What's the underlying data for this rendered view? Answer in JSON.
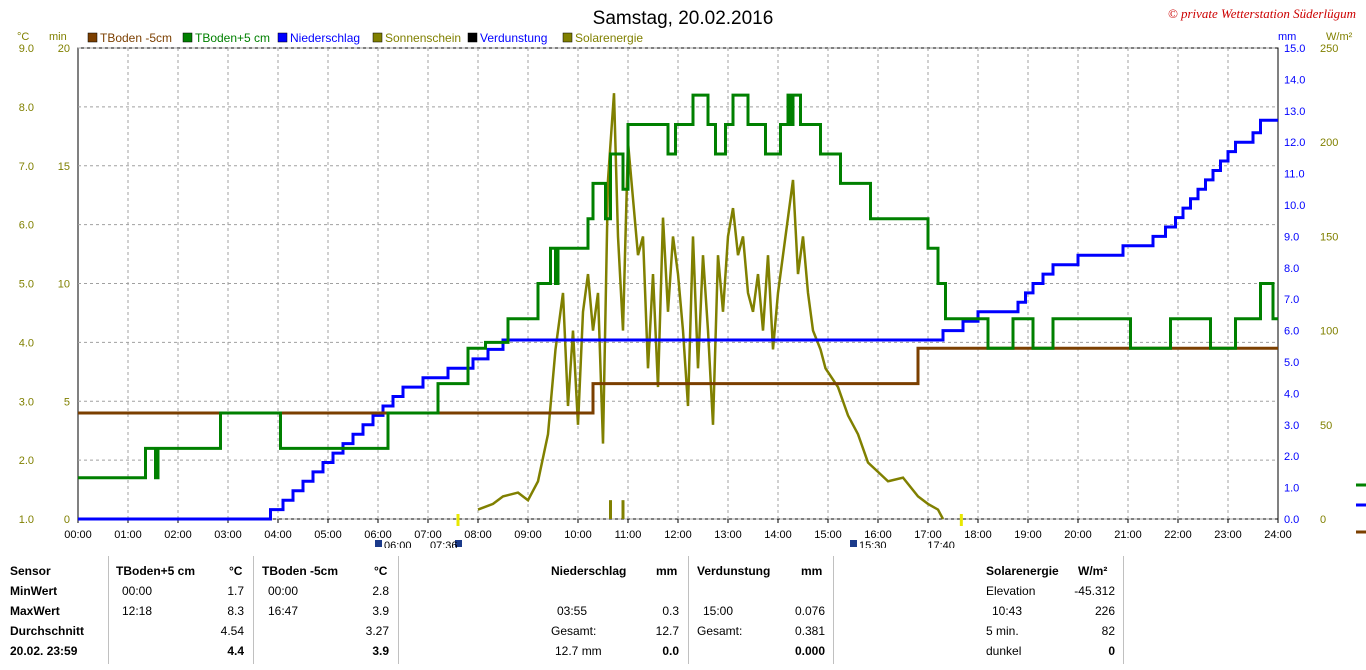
{
  "page": {
    "title": "Samstag, 20.02.2016",
    "copyright": "© private Wetterstation Süderlügum"
  },
  "colors": {
    "tboden_minus5": "#7b3f00",
    "tboden_plus5": "#008000",
    "niederschlag": "#0000ff",
    "sonnenschein": "#808000",
    "verdunstung": "#000000",
    "solarenergie": "#808000",
    "copyright": "#cc0000"
  },
  "chart_data": {
    "type": "line",
    "title": "Samstag, 20.02.2016",
    "legend": [
      "TBoden -5cm",
      "TBoden+5 cm",
      "Niederschlag",
      "Sonnenschein",
      "Verdunstung",
      "Solarenergie"
    ],
    "x_ticks": [
      "00:00",
      "01:00",
      "02:00",
      "03:00",
      "04:00",
      "05:00",
      "06:00",
      "07:00",
      "08:00",
      "09:00",
      "10:00",
      "11:00",
      "12:00",
      "13:00",
      "14:00",
      "15:00",
      "16:00",
      "17:00",
      "18:00",
      "19:00",
      "20:00",
      "21:00",
      "22:00",
      "23:00",
      "24:00"
    ],
    "xlim_hours": [
      0,
      24
    ],
    "axes": {
      "celsius": {
        "unit": "°C",
        "range": [
          1.0,
          9.0
        ],
        "ticks": [
          "1.0",
          "2.0",
          "3.0",
          "4.0",
          "5.0",
          "6.0",
          "7.0",
          "8.0",
          "9.0"
        ]
      },
      "minutes": {
        "unit": "min",
        "range": [
          0,
          20
        ],
        "ticks": [
          "0",
          "5",
          "10",
          "15",
          "20"
        ]
      },
      "mm": {
        "unit": "mm",
        "range": [
          0,
          15
        ],
        "ticks": [
          "0.0",
          "1.0",
          "2.0",
          "3.0",
          "4.0",
          "5.0",
          "6.0",
          "7.0",
          "8.0",
          "9.0",
          "10.0",
          "11.0",
          "12.0",
          "13.0",
          "14.0",
          "15.0"
        ]
      },
      "wm2": {
        "unit": "W/m²",
        "range": [
          0,
          250
        ],
        "ticks": [
          "0",
          "50",
          "100",
          "150",
          "200",
          "250"
        ]
      }
    },
    "sun_markers": {
      "sunrise": "06:00",
      "sun_start": "07:36",
      "sunset": "15:30",
      "sun_end": "17:40"
    },
    "series": [
      {
        "name": "TBoden -5cm",
        "axis": "celsius",
        "step": true,
        "points": [
          [
            0,
            2.8
          ],
          [
            10.3,
            2.8
          ],
          [
            10.3,
            3.3
          ],
          [
            16.8,
            3.3
          ],
          [
            16.8,
            3.9
          ],
          [
            24,
            3.9
          ]
        ]
      },
      {
        "name": "TBoden+5 cm",
        "axis": "celsius",
        "step": true,
        "points": [
          [
            0,
            1.7
          ],
          [
            1.35,
            1.7
          ],
          [
            1.35,
            2.2
          ],
          [
            1.55,
            2.2
          ],
          [
            1.55,
            1.7
          ],
          [
            1.6,
            1.7
          ],
          [
            1.6,
            2.2
          ],
          [
            2.85,
            2.2
          ],
          [
            2.85,
            2.8
          ],
          [
            4.05,
            2.8
          ],
          [
            4.05,
            2.2
          ],
          [
            6.2,
            2.2
          ],
          [
            6.2,
            2.8
          ],
          [
            7.2,
            2.8
          ],
          [
            7.2,
            3.3
          ],
          [
            7.8,
            3.3
          ],
          [
            7.8,
            3.9
          ],
          [
            8.15,
            3.9
          ],
          [
            8.15,
            4.0
          ],
          [
            8.6,
            4.0
          ],
          [
            8.6,
            4.4
          ],
          [
            9.2,
            4.4
          ],
          [
            9.2,
            5.0
          ],
          [
            9.45,
            5.0
          ],
          [
            9.45,
            5.6
          ],
          [
            9.55,
            5.6
          ],
          [
            9.55,
            5.0
          ],
          [
            9.6,
            5.0
          ],
          [
            9.6,
            5.6
          ],
          [
            10.2,
            5.6
          ],
          [
            10.2,
            6.1
          ],
          [
            10.3,
            6.1
          ],
          [
            10.3,
            6.7
          ],
          [
            10.55,
            6.7
          ],
          [
            10.55,
            6.1
          ],
          [
            10.65,
            6.1
          ],
          [
            10.65,
            7.2
          ],
          [
            10.9,
            7.2
          ],
          [
            10.9,
            6.6
          ],
          [
            11.0,
            6.6
          ],
          [
            11.0,
            7.7
          ],
          [
            11.8,
            7.7
          ],
          [
            11.8,
            7.2
          ],
          [
            11.95,
            7.2
          ],
          [
            11.95,
            7.7
          ],
          [
            12.3,
            7.7
          ],
          [
            12.3,
            8.2
          ],
          [
            12.6,
            8.2
          ],
          [
            12.6,
            7.7
          ],
          [
            12.75,
            7.7
          ],
          [
            12.75,
            7.2
          ],
          [
            12.95,
            7.2
          ],
          [
            12.95,
            7.7
          ],
          [
            13.1,
            7.7
          ],
          [
            13.1,
            8.2
          ],
          [
            13.4,
            8.2
          ],
          [
            13.4,
            7.7
          ],
          [
            13.75,
            7.7
          ],
          [
            13.75,
            7.2
          ],
          [
            14.05,
            7.2
          ],
          [
            14.05,
            7.7
          ],
          [
            14.2,
            7.7
          ],
          [
            14.2,
            8.2
          ],
          [
            14.25,
            8.2
          ],
          [
            14.25,
            7.7
          ],
          [
            14.3,
            7.7
          ],
          [
            14.3,
            8.2
          ],
          [
            14.45,
            8.2
          ],
          [
            14.45,
            7.7
          ],
          [
            14.85,
            7.7
          ],
          [
            14.85,
            7.2
          ],
          [
            15.25,
            7.2
          ],
          [
            15.25,
            6.7
          ],
          [
            15.85,
            6.7
          ],
          [
            15.85,
            6.1
          ],
          [
            17.0,
            6.1
          ],
          [
            17.0,
            5.6
          ],
          [
            17.2,
            5.6
          ],
          [
            17.2,
            5.0
          ],
          [
            17.35,
            5.0
          ],
          [
            17.35,
            4.4
          ],
          [
            18.2,
            4.4
          ],
          [
            18.2,
            3.9
          ],
          [
            18.7,
            3.9
          ],
          [
            18.7,
            4.4
          ],
          [
            19.1,
            4.4
          ],
          [
            19.1,
            3.9
          ],
          [
            19.5,
            3.9
          ],
          [
            19.5,
            4.4
          ],
          [
            21.05,
            4.4
          ],
          [
            21.05,
            3.9
          ],
          [
            21.85,
            3.9
          ],
          [
            21.85,
            4.4
          ],
          [
            22.65,
            4.4
          ],
          [
            22.65,
            3.9
          ],
          [
            23.15,
            3.9
          ],
          [
            23.15,
            4.4
          ],
          [
            23.65,
            4.4
          ],
          [
            23.65,
            5.0
          ],
          [
            23.9,
            5.0
          ],
          [
            23.9,
            4.4
          ],
          [
            24,
            4.4
          ]
        ]
      },
      {
        "name": "Niederschlag",
        "axis": "mm",
        "step": true,
        "points": [
          [
            0,
            0
          ],
          [
            3.85,
            0
          ],
          [
            3.85,
            0.3
          ],
          [
            4.1,
            0.3
          ],
          [
            4.1,
            0.6
          ],
          [
            4.3,
            0.6
          ],
          [
            4.3,
            0.9
          ],
          [
            4.5,
            0.9
          ],
          [
            4.5,
            1.2
          ],
          [
            4.7,
            1.2
          ],
          [
            4.7,
            1.5
          ],
          [
            4.9,
            1.5
          ],
          [
            4.9,
            1.8
          ],
          [
            5.1,
            1.8
          ],
          [
            5.1,
            2.1
          ],
          [
            5.3,
            2.1
          ],
          [
            5.3,
            2.4
          ],
          [
            5.5,
            2.4
          ],
          [
            5.5,
            2.7
          ],
          [
            5.7,
            2.7
          ],
          [
            5.7,
            3.0
          ],
          [
            5.9,
            3.0
          ],
          [
            5.9,
            3.3
          ],
          [
            6.1,
            3.3
          ],
          [
            6.1,
            3.6
          ],
          [
            6.3,
            3.6
          ],
          [
            6.3,
            3.9
          ],
          [
            6.5,
            3.9
          ],
          [
            6.5,
            4.2
          ],
          [
            6.9,
            4.2
          ],
          [
            6.9,
            4.5
          ],
          [
            7.4,
            4.5
          ],
          [
            7.4,
            4.8
          ],
          [
            7.9,
            4.8
          ],
          [
            7.9,
            5.1
          ],
          [
            8.2,
            5.1
          ],
          [
            8.2,
            5.4
          ],
          [
            8.5,
            5.4
          ],
          [
            8.5,
            5.7
          ],
          [
            17.3,
            5.7
          ],
          [
            17.3,
            6.0
          ],
          [
            17.7,
            6.0
          ],
          [
            17.7,
            6.3
          ],
          [
            18.0,
            6.3
          ],
          [
            18.0,
            6.6
          ],
          [
            18.8,
            6.6
          ],
          [
            18.8,
            6.9
          ],
          [
            18.95,
            6.9
          ],
          [
            18.95,
            7.2
          ],
          [
            19.1,
            7.2
          ],
          [
            19.1,
            7.5
          ],
          [
            19.3,
            7.5
          ],
          [
            19.3,
            7.8
          ],
          [
            19.5,
            7.8
          ],
          [
            19.5,
            8.1
          ],
          [
            20.0,
            8.1
          ],
          [
            20.0,
            8.4
          ],
          [
            20.9,
            8.4
          ],
          [
            20.9,
            8.7
          ],
          [
            21.5,
            8.7
          ],
          [
            21.5,
            9.0
          ],
          [
            21.75,
            9.0
          ],
          [
            21.75,
            9.3
          ],
          [
            21.95,
            9.3
          ],
          [
            21.95,
            9.6
          ],
          [
            22.1,
            9.6
          ],
          [
            22.1,
            9.9
          ],
          [
            22.25,
            9.9
          ],
          [
            22.25,
            10.2
          ],
          [
            22.4,
            10.2
          ],
          [
            22.4,
            10.5
          ],
          [
            22.55,
            10.5
          ],
          [
            22.55,
            10.8
          ],
          [
            22.7,
            10.8
          ],
          [
            22.7,
            11.1
          ],
          [
            22.85,
            11.1
          ],
          [
            22.85,
            11.4
          ],
          [
            23.0,
            11.4
          ],
          [
            23.0,
            11.7
          ],
          [
            23.15,
            11.7
          ],
          [
            23.15,
            12.0
          ],
          [
            23.5,
            12.0
          ],
          [
            23.5,
            12.3
          ],
          [
            23.65,
            12.3
          ],
          [
            23.65,
            12.7
          ],
          [
            24,
            12.7
          ]
        ]
      },
      {
        "name": "Sonnenschein",
        "axis": "minutes",
        "bars": true,
        "points": [
          [
            10.65,
            0.8
          ],
          [
            10.9,
            0.8
          ]
        ]
      },
      {
        "name": "Solarenergie",
        "axis": "wm2",
        "points": [
          [
            8.0,
            5
          ],
          [
            8.3,
            8
          ],
          [
            8.5,
            12
          ],
          [
            8.8,
            14
          ],
          [
            9.0,
            10
          ],
          [
            9.2,
            20
          ],
          [
            9.4,
            45
          ],
          [
            9.55,
            90
          ],
          [
            9.7,
            120
          ],
          [
            9.8,
            60
          ],
          [
            9.9,
            100
          ],
          [
            10.0,
            50
          ],
          [
            10.1,
            110
          ],
          [
            10.2,
            130
          ],
          [
            10.3,
            100
          ],
          [
            10.4,
            120
          ],
          [
            10.5,
            40
          ],
          [
            10.6,
            180
          ],
          [
            10.72,
            226
          ],
          [
            10.8,
            150
          ],
          [
            10.9,
            100
          ],
          [
            11.0,
            200
          ],
          [
            11.1,
            170
          ],
          [
            11.2,
            140
          ],
          [
            11.3,
            150
          ],
          [
            11.4,
            80
          ],
          [
            11.5,
            130
          ],
          [
            11.6,
            70
          ],
          [
            11.7,
            160
          ],
          [
            11.8,
            110
          ],
          [
            11.9,
            150
          ],
          [
            12.0,
            130
          ],
          [
            12.1,
            100
          ],
          [
            12.2,
            60
          ],
          [
            12.3,
            150
          ],
          [
            12.4,
            80
          ],
          [
            12.5,
            140
          ],
          [
            12.6,
            100
          ],
          [
            12.7,
            50
          ],
          [
            12.8,
            140
          ],
          [
            12.9,
            110
          ],
          [
            13.0,
            150
          ],
          [
            13.1,
            165
          ],
          [
            13.2,
            140
          ],
          [
            13.3,
            150
          ],
          [
            13.4,
            120
          ],
          [
            13.5,
            110
          ],
          [
            13.6,
            130
          ],
          [
            13.7,
            100
          ],
          [
            13.8,
            140
          ],
          [
            13.9,
            90
          ],
          [
            14.0,
            120
          ],
          [
            14.1,
            140
          ],
          [
            14.2,
            160
          ],
          [
            14.3,
            180
          ],
          [
            14.4,
            130
          ],
          [
            14.5,
            150
          ],
          [
            14.6,
            120
          ],
          [
            14.7,
            100
          ],
          [
            14.85,
            90
          ],
          [
            14.95,
            80
          ],
          [
            15.2,
            70
          ],
          [
            15.4,
            55
          ],
          [
            15.6,
            45
          ],
          [
            15.8,
            30
          ],
          [
            16.0,
            25
          ],
          [
            16.2,
            20
          ],
          [
            16.5,
            22
          ],
          [
            16.8,
            12
          ],
          [
            17.0,
            8
          ],
          [
            17.2,
            5
          ],
          [
            17.3,
            0
          ]
        ]
      }
    ]
  },
  "stats": {
    "sensor_hdr": "Sensor",
    "row_labels": [
      "MinWert",
      "MaxWert",
      "Durchschnitt",
      "20.02. 23:59"
    ],
    "tboden5": {
      "hdr": "TBoden+5 cm",
      "unit": "°C",
      "min_time": "00:00",
      "min": "1.7",
      "max_time": "12:18",
      "max": "8.3",
      "avg": "4.54",
      "current": "4.4"
    },
    "tbodenm5": {
      "hdr": "TBoden -5cm",
      "unit": "°C",
      "min_time": "00:00",
      "min": "2.8",
      "max_time": "16:47",
      "max": "3.9",
      "avg": "3.27",
      "current": "3.9"
    },
    "niederschlag": {
      "hdr": "Niederschlag",
      "unit": "mm",
      "max_time": "03:55",
      "max": "0.3",
      "total_label": "Gesamt:",
      "total": "12.7",
      "current_label": "12.7 mm",
      "current": "0.0"
    },
    "verdunstung": {
      "hdr": "Verdunstung",
      "unit": "mm",
      "max_time": "15:00",
      "max": "0.076",
      "total_label": "Gesamt:",
      "total": "0.381",
      "current": "0.000"
    },
    "solar": {
      "hdr": "Solarenergie",
      "unit": "W/m²",
      "elev_label": "Elevation",
      "elev": "-45.312",
      "max_time": "10:43",
      "max": "226",
      "avg_label": "5 min.",
      "avg": "82",
      "current_label": "dunkel",
      "current": "0"
    }
  }
}
